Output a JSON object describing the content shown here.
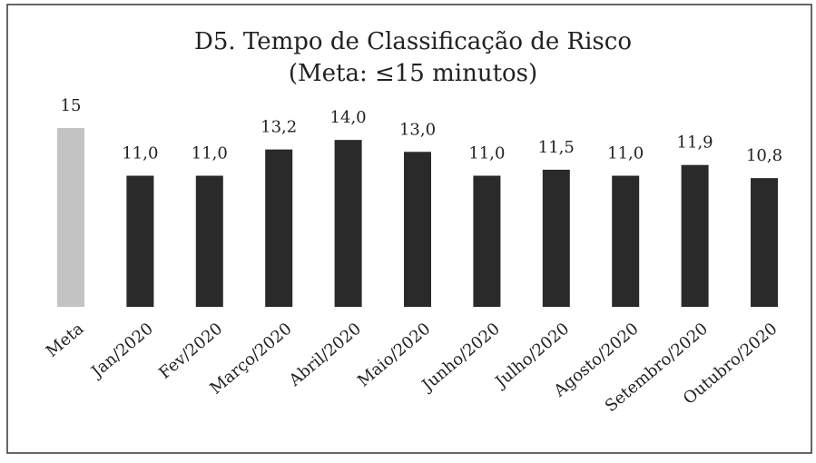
{
  "chart_data": {
    "type": "bar",
    "title": "D5. Tempo de Classificação de Risco",
    "subtitle": "(Meta: ≤15 minutos)",
    "categories": [
      "Meta",
      "Jan/2020",
      "Fev/2020",
      "Março/2020",
      "Abril/2020",
      "Maio/2020",
      "Junho/2020",
      "Julho/2020",
      "Agosto/2020",
      "Setembro/2020",
      "Outubro/2020"
    ],
    "values": [
      15,
      11.0,
      11.0,
      13.2,
      14.0,
      13.0,
      11.0,
      11.5,
      11.0,
      11.9,
      10.8
    ],
    "value_labels": [
      "15",
      "11,0",
      "11,0",
      "13,2",
      "14,0",
      "13,0",
      "11,0",
      "11,5",
      "11,0",
      "11,9",
      "10,8"
    ],
    "colors": [
      "#c4c4c4",
      "#2a2a2a",
      "#2a2a2a",
      "#2a2a2a",
      "#2a2a2a",
      "#2a2a2a",
      "#2a2a2a",
      "#2a2a2a",
      "#2a2a2a",
      "#2a2a2a",
      "#2a2a2a"
    ]
  }
}
